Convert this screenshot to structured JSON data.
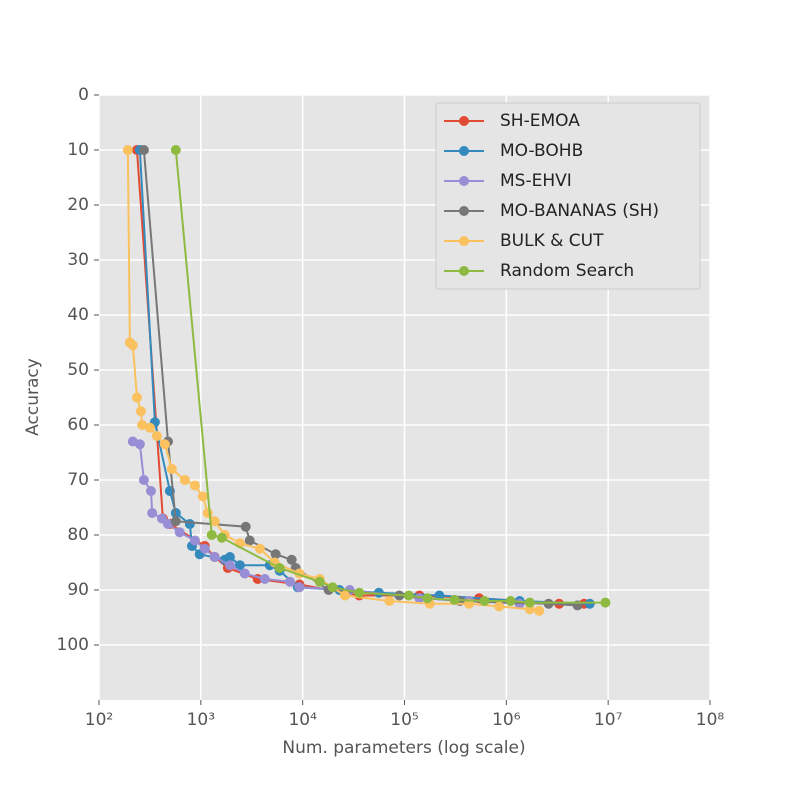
{
  "chart_data": {
    "type": "line",
    "x_label": "Num. parameters (log scale)",
    "y_label": "Accuracy",
    "x_scale": "log",
    "y_inverted": true,
    "grid": true,
    "legend": "upper right",
    "xlim": [
      100,
      100000000
    ],
    "xticks": [
      {
        "value": 100,
        "label": "10²"
      },
      {
        "value": 1000,
        "label": "10³"
      },
      {
        "value": 10000,
        "label": "10⁴"
      },
      {
        "value": 100000,
        "label": "10⁵"
      },
      {
        "value": 1000000,
        "label": "10⁶"
      },
      {
        "value": 10000000,
        "label": "10⁷"
      },
      {
        "value": 100000000,
        "label": "10⁸"
      }
    ],
    "ylim": [
      0,
      110
    ],
    "yticks": [
      0,
      10,
      20,
      30,
      40,
      50,
      60,
      70,
      80,
      90,
      100
    ],
    "series": [
      {
        "name": "SH-EMOA",
        "color": "#e24a33",
        "x": [
          236,
          424,
          497,
          1094,
          1369,
          1843,
          3617,
          9300,
          36000,
          140000,
          540000,
          3300000,
          5800000
        ],
        "values": [
          10,
          77,
          78,
          82,
          84,
          86,
          88,
          89,
          91,
          91,
          91.5,
          92.5,
          92.5
        ]
      },
      {
        "name": "MO-BOHB",
        "color": "#348abd",
        "x": [
          252,
          354,
          497,
          568,
          780,
          818,
          975,
          1720,
          1930,
          2420,
          4750,
          5940,
          8950,
          23000,
          56000,
          220000,
          1350000,
          6600000
        ],
        "values": [
          10,
          59.5,
          72,
          76,
          78,
          82,
          83.5,
          84.5,
          84,
          85.5,
          85.5,
          86.5,
          89.5,
          90,
          90.5,
          91,
          92,
          92.5
        ]
      },
      {
        "name": "MS-EHVI",
        "color": "#988ed5",
        "x": [
          215,
          252,
          276,
          324,
          333,
          415,
          476,
          620,
          875,
          1094,
          1369,
          1930,
          2700,
          4250,
          7500,
          9300,
          29000,
          140000,
          430000,
          1350000
        ],
        "values": [
          63,
          63.5,
          70,
          72,
          76,
          77,
          78,
          79.5,
          81,
          82.5,
          84,
          85.5,
          87,
          88,
          88.5,
          89.5,
          90,
          91.5,
          92,
          92.5
        ]
      },
      {
        "name": "MO-BANANAS (SH)",
        "color": "#777777",
        "x": [
          276,
          476,
          568,
          2760,
          3020,
          5430,
          7800,
          8530,
          18000,
          89000,
          350000,
          2600000,
          5000000
        ],
        "values": [
          10,
          63,
          77.5,
          78.5,
          81,
          83.5,
          84.5,
          86,
          90,
          91,
          92,
          92.5,
          92.8
        ]
      },
      {
        "name": "BULK & CUT",
        "color": "#fbc15e",
        "x": [
          192,
          201,
          215,
          236,
          258,
          265,
          316,
          370,
          443,
          520,
          697,
          875,
          1047,
          1170,
          1369,
          1720,
          2420,
          3800,
          5300,
          9300,
          14700,
          26000,
          71000,
          177000,
          430000,
          850000,
          1700000,
          2100000
        ],
        "values": [
          10,
          45,
          45.5,
          55,
          57.5,
          60,
          60.5,
          62,
          63.5,
          68,
          70,
          71,
          73,
          76,
          77.5,
          80,
          81.5,
          82.5,
          85,
          87,
          88,
          91,
          92,
          92.5,
          92.5,
          93,
          93.5,
          93.8
        ]
      },
      {
        "name": "Random Search",
        "color": "#8eba42",
        "x": [
          568,
          1280,
          1610,
          5940,
          14700,
          19700,
          36000,
          110000,
          168000,
          310000,
          610000,
          1100000,
          1700000,
          9400000
        ],
        "values": [
          10,
          80,
          80.5,
          86,
          88.5,
          89.5,
          90.5,
          91,
          91.5,
          91.8,
          92,
          92,
          92.3,
          92.3
        ]
      }
    ]
  }
}
